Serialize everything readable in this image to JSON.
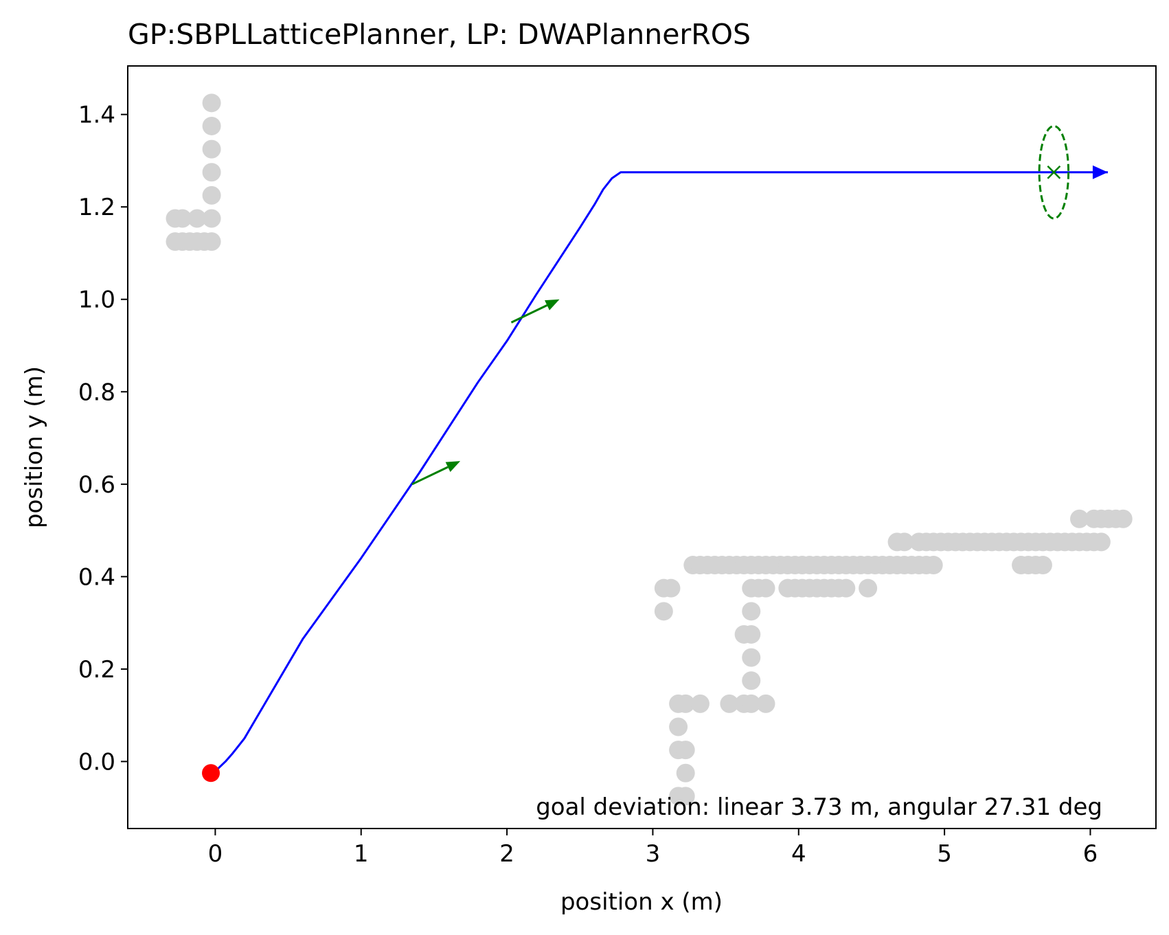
{
  "chart_data": {
    "type": "scatter",
    "title": "GP:SBPLLatticePlanner, LP: DWAPlannerROS",
    "xlabel": "position x (m)",
    "ylabel": "position y (m)",
    "xlim": [
      -0.6,
      6.45
    ],
    "ylim": [
      -0.145,
      1.505
    ],
    "xticks": [
      0,
      1,
      2,
      3,
      4,
      5,
      6
    ],
    "xtick_labels": [
      "0",
      "1",
      "2",
      "3",
      "4",
      "5",
      "6"
    ],
    "yticks": [
      0.0,
      0.2,
      0.4,
      0.6,
      0.8,
      1.0,
      1.2,
      1.4
    ],
    "ytick_labels": [
      "0.0",
      "0.2",
      "0.4",
      "0.6",
      "0.8",
      "1.0",
      "1.2",
      "1.4"
    ],
    "grid": false,
    "annotation": "goal deviation: linear 3.73 m, angular 27.31 deg",
    "colors": {
      "path": "#0000ff",
      "obstacle": "#d3d3d3",
      "start": "#ff0000",
      "goal": "#008000"
    },
    "path": {
      "x": [
        -0.03,
        0.02,
        0.07,
        0.12,
        0.15,
        0.2,
        0.6,
        1.0,
        1.4,
        1.8,
        2.0,
        2.2,
        2.5,
        2.6,
        2.66,
        2.72,
        2.78,
        3.2,
        4.0,
        5.0,
        5.75,
        6.12
      ],
      "y": [
        -0.025,
        -0.015,
        0.0,
        0.018,
        0.03,
        0.05,
        0.265,
        0.44,
        0.625,
        0.82,
        0.91,
        1.01,
        1.155,
        1.205,
        1.238,
        1.262,
        1.275,
        1.275,
        1.275,
        1.275,
        1.275,
        1.275
      ]
    },
    "orientation_arrows": [
      {
        "x": 1.35,
        "y": 0.6,
        "dx": 0.33,
        "dy": 0.05
      },
      {
        "x": 2.03,
        "y": 0.95,
        "dx": 0.33,
        "dy": 0.05
      }
    ],
    "start": {
      "x": -0.03,
      "y": -0.025
    },
    "goal": {
      "x": 5.75,
      "y": 1.275,
      "tolerance_rx": 0.1,
      "tolerance_ry": 0.1
    },
    "obstacles": [
      [
        -0.025,
        1.425
      ],
      [
        -0.025,
        1.375
      ],
      [
        -0.025,
        1.325
      ],
      [
        -0.025,
        1.275
      ],
      [
        -0.025,
        1.225
      ],
      [
        -0.025,
        1.175
      ],
      [
        -0.025,
        1.125
      ],
      [
        -0.275,
        1.175
      ],
      [
        -0.225,
        1.175
      ],
      [
        -0.125,
        1.175
      ],
      [
        -0.275,
        1.125
      ],
      [
        -0.225,
        1.125
      ],
      [
        -0.175,
        1.125
      ],
      [
        -0.125,
        1.125
      ],
      [
        -0.075,
        1.125
      ],
      [
        3.075,
        0.375
      ],
      [
        3.125,
        0.375
      ],
      [
        3.075,
        0.325
      ],
      [
        3.175,
        0.125
      ],
      [
        3.225,
        0.125
      ],
      [
        3.325,
        0.125
      ],
      [
        3.175,
        0.075
      ],
      [
        3.175,
        0.025
      ],
      [
        3.225,
        0.025
      ],
      [
        3.225,
        -0.025
      ],
      [
        3.175,
        -0.075
      ],
      [
        3.225,
        -0.075
      ],
      [
        3.525,
        0.125
      ],
      [
        3.625,
        0.125
      ],
      [
        3.675,
        0.125
      ],
      [
        3.775,
        0.125
      ],
      [
        3.675,
        0.175
      ],
      [
        3.675,
        0.225
      ],
      [
        3.625,
        0.275
      ],
      [
        3.675,
        0.275
      ],
      [
        3.675,
        0.325
      ],
      [
        3.675,
        0.375
      ],
      [
        3.725,
        0.375
      ],
      [
        3.775,
        0.375
      ],
      [
        3.925,
        0.375
      ],
      [
        3.975,
        0.375
      ],
      [
        4.025,
        0.375
      ],
      [
        4.075,
        0.375
      ],
      [
        4.125,
        0.375
      ],
      [
        4.175,
        0.375
      ],
      [
        4.225,
        0.375
      ],
      [
        4.275,
        0.375
      ],
      [
        4.325,
        0.375
      ],
      [
        4.475,
        0.375
      ],
      [
        3.275,
        0.425
      ],
      [
        3.325,
        0.425
      ],
      [
        3.375,
        0.425
      ],
      [
        3.425,
        0.425
      ],
      [
        3.475,
        0.425
      ],
      [
        3.525,
        0.425
      ],
      [
        3.575,
        0.425
      ],
      [
        3.625,
        0.425
      ],
      [
        3.675,
        0.425
      ],
      [
        3.725,
        0.425
      ],
      [
        3.775,
        0.425
      ],
      [
        3.825,
        0.425
      ],
      [
        3.875,
        0.425
      ],
      [
        3.925,
        0.425
      ],
      [
        3.975,
        0.425
      ],
      [
        4.025,
        0.425
      ],
      [
        4.075,
        0.425
      ],
      [
        4.125,
        0.425
      ],
      [
        4.175,
        0.425
      ],
      [
        4.225,
        0.425
      ],
      [
        4.275,
        0.425
      ],
      [
        4.325,
        0.425
      ],
      [
        4.375,
        0.425
      ],
      [
        4.425,
        0.425
      ],
      [
        4.475,
        0.425
      ],
      [
        4.525,
        0.425
      ],
      [
        4.575,
        0.425
      ],
      [
        4.625,
        0.425
      ],
      [
        4.675,
        0.425
      ],
      [
        4.725,
        0.425
      ],
      [
        4.775,
        0.425
      ],
      [
        4.825,
        0.425
      ],
      [
        4.875,
        0.425
      ],
      [
        4.925,
        0.425
      ],
      [
        5.525,
        0.425
      ],
      [
        5.575,
        0.425
      ],
      [
        5.625,
        0.425
      ],
      [
        5.675,
        0.425
      ],
      [
        4.675,
        0.475
      ],
      [
        4.725,
        0.475
      ],
      [
        4.825,
        0.475
      ],
      [
        4.875,
        0.475
      ],
      [
        4.925,
        0.475
      ],
      [
        4.975,
        0.475
      ],
      [
        5.025,
        0.475
      ],
      [
        5.075,
        0.475
      ],
      [
        5.125,
        0.475
      ],
      [
        5.175,
        0.475
      ],
      [
        5.225,
        0.475
      ],
      [
        5.275,
        0.475
      ],
      [
        5.325,
        0.475
      ],
      [
        5.375,
        0.475
      ],
      [
        5.425,
        0.475
      ],
      [
        5.475,
        0.475
      ],
      [
        5.525,
        0.475
      ],
      [
        5.575,
        0.475
      ],
      [
        5.625,
        0.475
      ],
      [
        5.675,
        0.475
      ],
      [
        5.725,
        0.475
      ],
      [
        5.775,
        0.475
      ],
      [
        5.825,
        0.475
      ],
      [
        5.875,
        0.475
      ],
      [
        5.925,
        0.475
      ],
      [
        5.975,
        0.475
      ],
      [
        6.025,
        0.475
      ],
      [
        6.075,
        0.475
      ],
      [
        5.925,
        0.525
      ],
      [
        6.025,
        0.525
      ],
      [
        6.075,
        0.525
      ],
      [
        6.125,
        0.525
      ],
      [
        6.175,
        0.525
      ],
      [
        6.225,
        0.525
      ]
    ]
  }
}
